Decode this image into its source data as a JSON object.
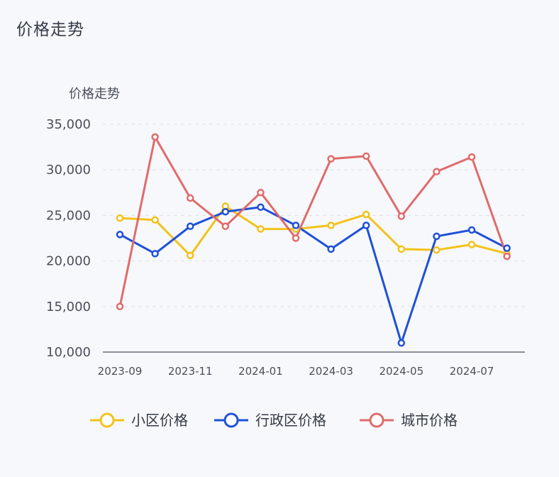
{
  "page": {
    "title": "价格走势"
  },
  "chart_data": {
    "type": "line",
    "title": "",
    "ylabel": "价格走势",
    "xlabel": "",
    "ylim": [
      10000,
      35000
    ],
    "yticks": [
      "10,000",
      "15,000",
      "20,000",
      "25,000",
      "30,000",
      "35,000"
    ],
    "ytick_values": [
      10000,
      15000,
      20000,
      25000,
      30000,
      35000
    ],
    "x": [
      "2023-09",
      "2023-10",
      "2023-11",
      "2023-12",
      "2024-01",
      "2024-02",
      "2024-03",
      "2024-04",
      "2024-05",
      "2024-06",
      "2024-07",
      "2024-08"
    ],
    "xtick_labels": [
      "2023-09",
      "2023-11",
      "2024-01",
      "2024-03",
      "2024-05",
      "2024-07"
    ],
    "xtick_indices": [
      0,
      2,
      4,
      6,
      8,
      10
    ],
    "grid": "horizontal dashed",
    "legend_position": "bottom",
    "series": [
      {
        "name": "小区价格",
        "color": "#f2c21a",
        "values": [
          24700,
          24500,
          20600,
          26000,
          23500,
          23500,
          23900,
          25100,
          21300,
          21200,
          21800,
          20800
        ]
      },
      {
        "name": "行政区价格",
        "color": "#1f50d8",
        "values": [
          22900,
          20800,
          23800,
          25400,
          25900,
          23900,
          21300,
          23900,
          11000,
          22700,
          23400,
          21400
        ]
      },
      {
        "name": "城市价格",
        "color": "#e06b6b",
        "values": [
          15000,
          33600,
          26900,
          23800,
          27500,
          22500,
          31200,
          31500,
          24900,
          29800,
          31400,
          20500
        ]
      }
    ]
  }
}
